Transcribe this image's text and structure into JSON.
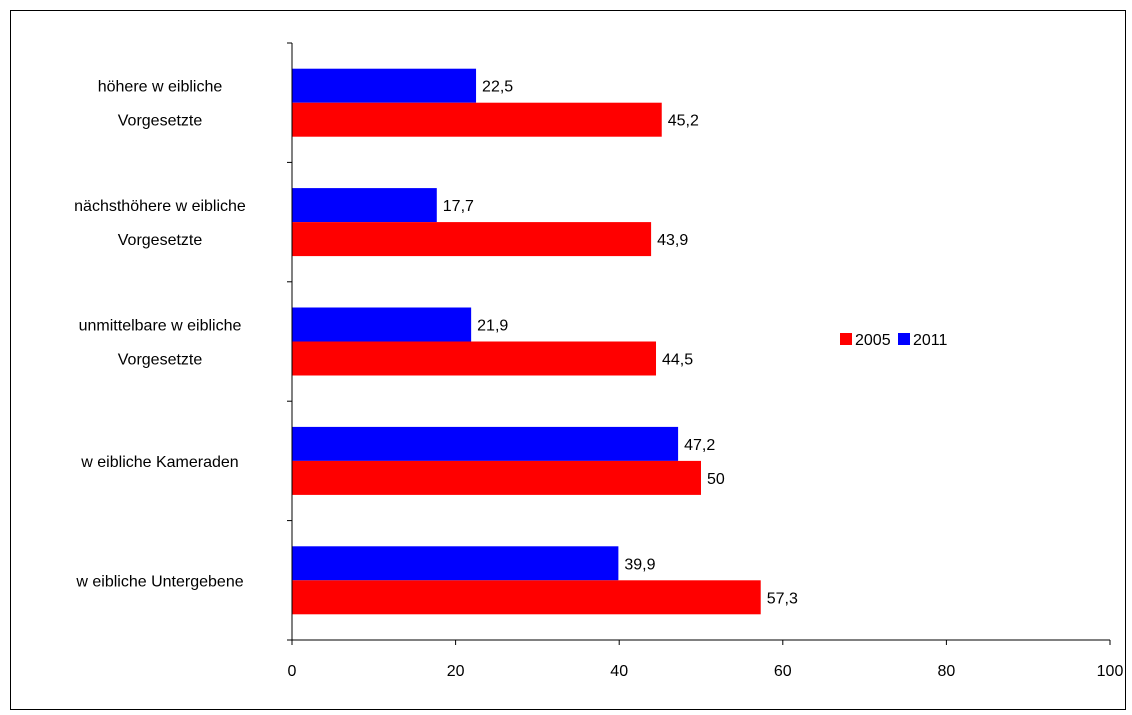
{
  "chart_data": {
    "type": "bar",
    "orientation": "horizontal",
    "categories": [
      [
        "höhere w eibliche",
        "Vorgesetzte"
      ],
      [
        "nächsthöhere w eibliche",
        "Vorgesetzte"
      ],
      [
        "unmittelbare w eibliche",
        "Vorgesetzte"
      ],
      [
        "w eibliche Kameraden"
      ],
      [
        "w eibliche Untergebene"
      ]
    ],
    "series": [
      {
        "name": "2011",
        "color": "#0000ff",
        "values": [
          22.5,
          17.7,
          21.9,
          47.2,
          39.9
        ],
        "labels": [
          "22,5",
          "17,7",
          "21,9",
          "47,2",
          "39,9"
        ]
      },
      {
        "name": "2005",
        "color": "#ff0000",
        "values": [
          45.2,
          43.9,
          44.5,
          50,
          57.3
        ],
        "labels": [
          "45,2",
          "43,9",
          "44,5",
          "50",
          "57,3"
        ]
      }
    ],
    "legend_order": [
      "2005",
      "2011"
    ],
    "legend_position": "right",
    "xlim": [
      0,
      100
    ],
    "xticks": [
      0,
      20,
      40,
      60,
      80,
      100
    ],
    "grid": false,
    "title": "",
    "xlabel": "",
    "ylabel": ""
  }
}
